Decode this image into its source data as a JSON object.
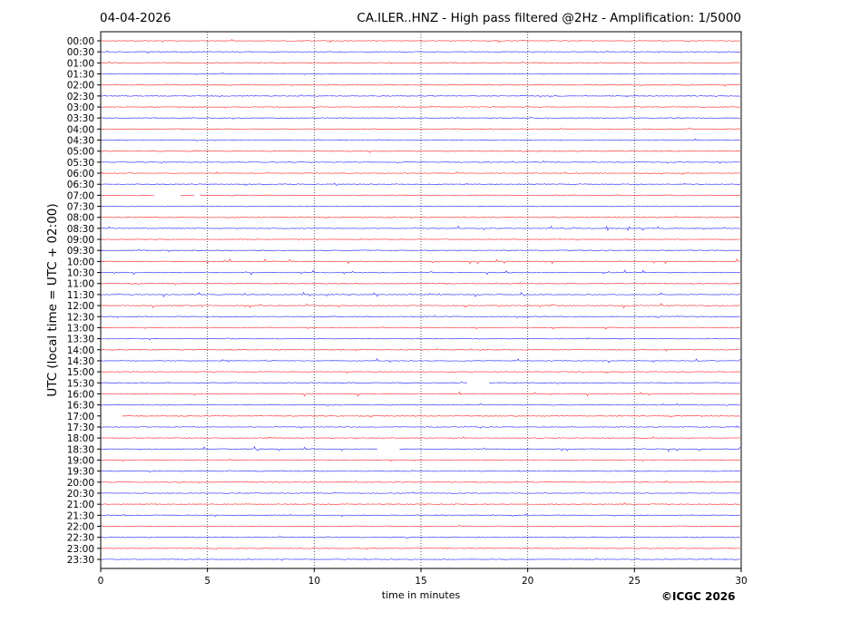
{
  "header": {
    "date": "04-04-2026",
    "title": "CA.ILER..HNZ - High pass filtered @2Hz - Amplification: 1/5000"
  },
  "footer": {
    "copyright": "©ICGC 2026"
  },
  "chart_data": {
    "type": "line",
    "subtype": "helicorder",
    "title": "CA.ILER..HNZ - High pass filtered @2Hz - Amplification: 1/5000",
    "date": "04-04-2026",
    "xlabel": "time in minutes",
    "ylabel": "UTC (local time = UTC + 02:00)",
    "xlim": [
      0,
      30
    ],
    "xticks": [
      "0",
      "5",
      "10",
      "15",
      "20",
      "25",
      "30"
    ],
    "grid": "vertical dotted at every 5 minutes",
    "row_labels": [
      "00:00",
      "00:30",
      "01:00",
      "01:30",
      "02:00",
      "02:30",
      "03:00",
      "03:30",
      "04:00",
      "04:30",
      "05:00",
      "05:30",
      "06:00",
      "06:30",
      "07:00",
      "07:30",
      "08:00",
      "08:30",
      "09:00",
      "09:30",
      "10:00",
      "10:30",
      "11:00",
      "11:30",
      "12:00",
      "12:30",
      "13:00",
      "13:30",
      "14:00",
      "14:30",
      "15:00",
      "15:30",
      "16:00",
      "16:30",
      "17:00",
      "17:30",
      "18:00",
      "18:30",
      "19:00",
      "19:30",
      "20:00",
      "20:30",
      "21:00",
      "21:30",
      "22:00",
      "22:30",
      "23:00",
      "23:30"
    ],
    "trace_colors": [
      "#ff0000",
      "#0000ff"
    ],
    "gaps": [
      {
        "row": "07:00",
        "from_min": 2.5,
        "to_min": 3.7
      },
      {
        "row": "07:00",
        "from_min": 4.4,
        "to_min": 4.6
      },
      {
        "row": "15:30",
        "from_min": 17.2,
        "to_min": 18.2
      },
      {
        "row": "17:00",
        "from_min": 0,
        "to_min": 1.0
      },
      {
        "row": "18:30",
        "from_min": 13.0,
        "to_min": 14.0
      }
    ],
    "noisy_rows": [
      "08:30",
      "10:00",
      "10:30",
      "11:30",
      "12:00",
      "14:30",
      "16:00",
      "18:30"
    ]
  }
}
